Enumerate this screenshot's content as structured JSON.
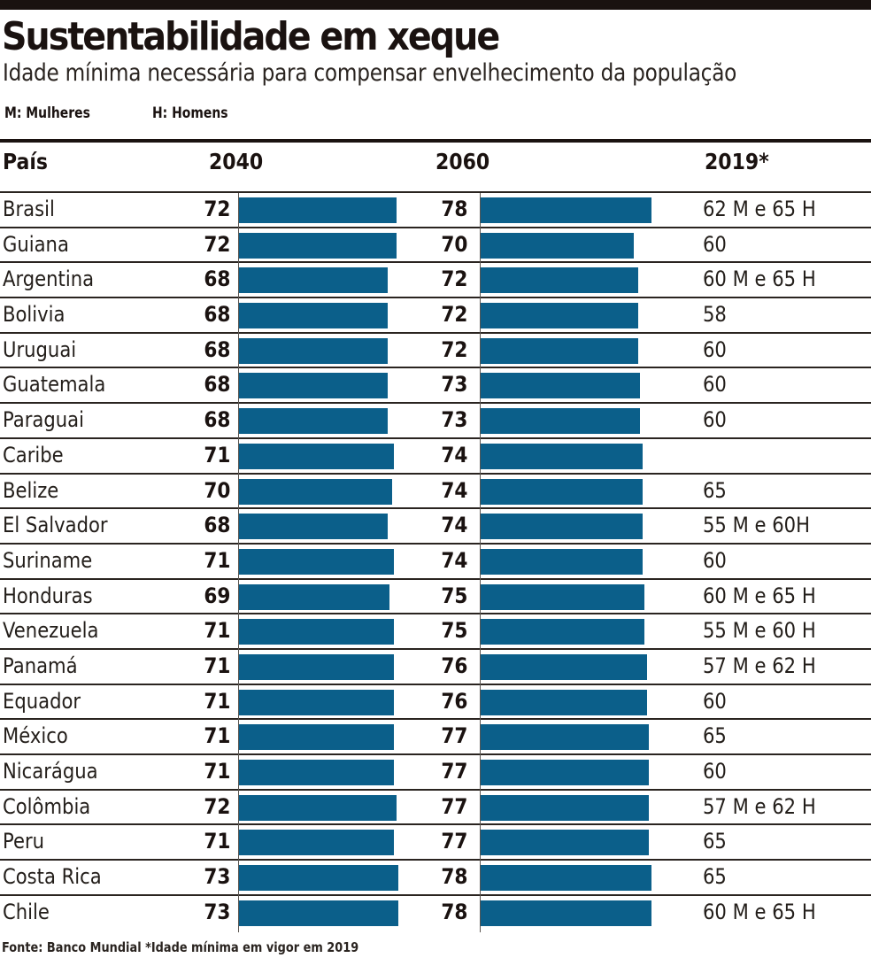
{
  "header": {
    "title": "Sustentabilidade em xeque",
    "subtitle": "Idade mínima necessária para compensar envelhecimento da população",
    "legend_m": "M: Mulheres",
    "legend_h": "H: Homens"
  },
  "colors": {
    "bar": "#0b5f8a",
    "rule": "#1a1210"
  },
  "columns": {
    "country": "País",
    "y2040": "2040",
    "y2060": "2060",
    "y2019": "2019*"
  },
  "footer": "Fonte: Banco Mundial *Idade mínima em vigor em 2019",
  "chart_data": {
    "type": "bar",
    "title": "Sustentabilidade em xeque",
    "subtitle": "Idade mínima necessária para compensar envelhecimento da população",
    "categories": [
      "Brasil",
      "Guiana",
      "Argentina",
      "Bolivia",
      "Uruguai",
      "Guatemala",
      "Paraguai",
      "Caribe",
      "Belize",
      "El Salvador",
      "Suriname",
      "Honduras",
      "Venezuela",
      "Panamá",
      "Equador",
      "México",
      "Nicarágua",
      "Colômbia",
      "Peru",
      "Costa Rica",
      "Chile"
    ],
    "series": [
      {
        "name": "2040",
        "values": [
          72,
          72,
          68,
          68,
          68,
          68,
          68,
          71,
          70,
          68,
          71,
          69,
          71,
          71,
          71,
          71,
          71,
          72,
          71,
          73,
          73
        ]
      },
      {
        "name": "2060",
        "values": [
          78,
          70,
          72,
          72,
          72,
          73,
          73,
          74,
          74,
          74,
          74,
          75,
          75,
          76,
          76,
          77,
          77,
          77,
          77,
          78,
          78
        ]
      }
    ],
    "table_2019": [
      "62 M  e 65 H",
      "60",
      "60 M e 65 H",
      "58",
      "60",
      "60",
      "60",
      "",
      "65",
      "55 M e 60H",
      "60",
      "60 M e 65 H",
      "55 M e 60 H",
      "57 M e 62 H",
      "60",
      "65",
      "60",
      "57 M e 62 H",
      "65",
      "65",
      "60 M e 65 H"
    ],
    "xlabel": "",
    "ylabel": "Idade mínima",
    "orientation": "horizontal",
    "grid": false,
    "source": "Fonte: Banco Mundial *Idade mínima em vigor em 2019"
  }
}
